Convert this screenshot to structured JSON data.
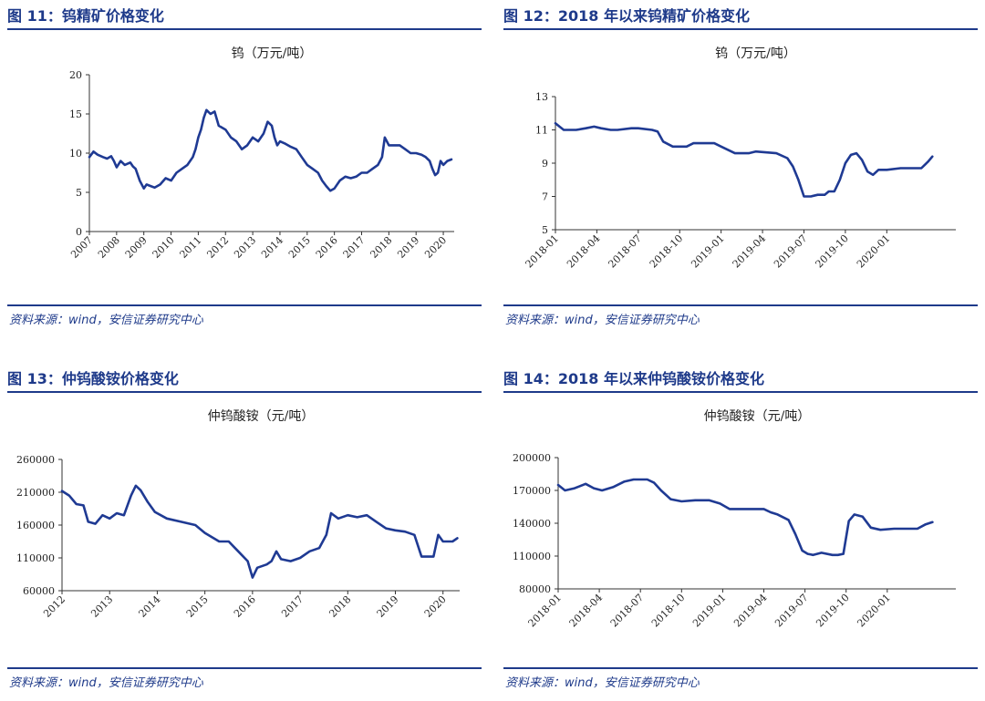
{
  "panels": [
    {
      "fig_title": "图 11：钨精矿价格变化",
      "source": "资料来源：wind，安信证券研究中心",
      "chart_data": {
        "type": "line",
        "title": "钨（万元/吨）",
        "ylim": [
          0,
          20
        ],
        "yticks": [
          "0",
          "5",
          "10",
          "15",
          "20"
        ],
        "xlim": [
          2007,
          2020.4
        ],
        "xtick_values": [
          2007,
          2008,
          2009,
          2010,
          2011,
          2012,
          2013,
          2014,
          2015,
          2016,
          2017,
          2018,
          2019,
          2020
        ],
        "xticks": [
          "2007",
          "2008",
          "2009",
          "2010",
          "2011",
          "2012",
          "2013",
          "2014",
          "2015",
          "2016",
          "2017",
          "2018",
          "2019",
          "2020"
        ],
        "line_color": "#1f3a93",
        "x": [
          2007.0,
          2007.15,
          2007.3,
          2007.5,
          2007.65,
          2007.8,
          2007.9,
          2008.0,
          2008.15,
          2008.3,
          2008.5,
          2008.6,
          2008.7,
          2008.85,
          2009.0,
          2009.1,
          2009.25,
          2009.4,
          2009.6,
          2009.8,
          2010.0,
          2010.2,
          2010.4,
          2010.6,
          2010.8,
          2010.9,
          2011.0,
          2011.1,
          2011.2,
          2011.3,
          2011.45,
          2011.6,
          2011.75,
          2011.9,
          2012.0,
          2012.2,
          2012.4,
          2012.6,
          2012.8,
          2013.0,
          2013.2,
          2013.4,
          2013.55,
          2013.7,
          2013.8,
          2013.9,
          2014.0,
          2014.2,
          2014.4,
          2014.6,
          2014.8,
          2015.0,
          2015.2,
          2015.4,
          2015.55,
          2015.7,
          2015.85,
          2016.0,
          2016.2,
          2016.4,
          2016.6,
          2016.8,
          2017.0,
          2017.2,
          2017.4,
          2017.6,
          2017.75,
          2017.85,
          2018.0,
          2018.2,
          2018.4,
          2018.6,
          2018.8,
          2019.0,
          2019.2,
          2019.35,
          2019.5,
          2019.6,
          2019.7,
          2019.8,
          2019.9,
          2020.0,
          2020.15,
          2020.3
        ],
        "values": [
          9.5,
          10.2,
          9.8,
          9.5,
          9.3,
          9.6,
          9.0,
          8.2,
          9.0,
          8.5,
          8.8,
          8.3,
          8.0,
          6.5,
          5.5,
          6.0,
          5.8,
          5.6,
          6.0,
          6.8,
          6.5,
          7.5,
          8.0,
          8.5,
          9.5,
          10.5,
          12.0,
          13.0,
          14.5,
          15.5,
          15.0,
          15.3,
          13.5,
          13.2,
          13.0,
          12.0,
          11.5,
          10.5,
          11.0,
          12.0,
          11.5,
          12.5,
          14.0,
          13.5,
          12.0,
          11.0,
          11.5,
          11.2,
          10.8,
          10.5,
          9.5,
          8.5,
          8.0,
          7.5,
          6.5,
          5.8,
          5.2,
          5.5,
          6.5,
          7.0,
          6.8,
          7.0,
          7.5,
          7.5,
          8.0,
          8.5,
          9.5,
          12.0,
          11.0,
          11.0,
          11.0,
          10.5,
          10.0,
          10.0,
          9.8,
          9.5,
          9.0,
          8.0,
          7.2,
          7.5,
          9.0,
          8.5,
          9.0,
          9.2
        ]
      }
    },
    {
      "fig_title": "图 12：2018 年以来钨精矿价格变化",
      "source": "资料来源：wind，安信证券研究中心",
      "chart_data": {
        "type": "line",
        "title": "钨（万元/吨）",
        "ylim": [
          5,
          13
        ],
        "yticks": [
          "5",
          "7",
          "9",
          "11",
          "13"
        ],
        "xlim": [
          0,
          29
        ],
        "xtick_values": [
          0,
          3,
          6,
          9,
          12,
          15,
          18,
          21,
          24
        ],
        "xticks": [
          "2018-01",
          "2018-04",
          "2018-07",
          "2018-10",
          "2019-01",
          "2019-04",
          "2019-07",
          "2019-10",
          "2020-01"
        ],
        "line_color": "#1f3a93",
        "x": [
          0,
          0.3,
          0.6,
          1.5,
          2.2,
          2.8,
          3.3,
          4.0,
          4.5,
          5.5,
          6.0,
          7.0,
          7.4,
          7.8,
          8.5,
          9.5,
          10.0,
          11.5,
          12.0,
          13.0,
          14.0,
          14.5,
          16.0,
          16.8,
          17.2,
          17.6,
          18.0,
          18.5,
          19.0,
          19.5,
          19.8,
          20.2,
          20.6,
          21.0,
          21.4,
          21.8,
          22.2,
          22.6,
          23.0,
          23.4,
          24.0,
          25.0,
          26.0,
          26.5,
          27.0,
          27.3
        ],
        "values": [
          11.4,
          11.2,
          11.0,
          11.0,
          11.1,
          11.2,
          11.1,
          11.0,
          11.0,
          11.1,
          11.1,
          11.0,
          10.9,
          10.3,
          10.0,
          10.0,
          10.2,
          10.2,
          10.0,
          9.6,
          9.6,
          9.7,
          9.6,
          9.3,
          8.8,
          8.0,
          7.0,
          7.0,
          7.1,
          7.1,
          7.3,
          7.3,
          8.0,
          9.0,
          9.5,
          9.6,
          9.2,
          8.5,
          8.3,
          8.6,
          8.6,
          8.7,
          8.7,
          8.7,
          9.1,
          9.4
        ]
      }
    },
    {
      "fig_title": "图 13：仲钨酸铵价格变化",
      "source": "资料来源：wind，安信证券研究中心",
      "chart_data": {
        "type": "line",
        "title": "仲钨酸铵（元/吨）",
        "ylim": [
          60000,
          260000
        ],
        "yticks": [
          "60000",
          "110000",
          "160000",
          "210000",
          "260000"
        ],
        "xlim": [
          2012,
          2020.35
        ],
        "xtick_values": [
          2012,
          2013,
          2014,
          2015,
          2016,
          2017,
          2018,
          2019,
          2020
        ],
        "xticks": [
          "2012",
          "2013",
          "2014",
          "2015",
          "2016",
          "2017",
          "2018",
          "2019",
          "2020"
        ],
        "line_color": "#1f3a93",
        "x": [
          2012.0,
          2012.15,
          2012.3,
          2012.45,
          2012.55,
          2012.7,
          2012.85,
          2013.0,
          2013.15,
          2013.3,
          2013.45,
          2013.55,
          2013.65,
          2013.8,
          2013.95,
          2014.2,
          2014.5,
          2014.8,
          2015.0,
          2015.3,
          2015.5,
          2015.7,
          2015.9,
          2016.0,
          2016.1,
          2016.3,
          2016.4,
          2016.5,
          2016.6,
          2016.8,
          2017.0,
          2017.2,
          2017.4,
          2017.55,
          2017.65,
          2017.8,
          2018.0,
          2018.2,
          2018.4,
          2018.6,
          2018.8,
          2019.0,
          2019.2,
          2019.4,
          2019.55,
          2019.65,
          2019.8,
          2019.9,
          2020.0,
          2020.2,
          2020.3
        ],
        "values": [
          212000,
          205000,
          192000,
          190000,
          165000,
          162000,
          175000,
          170000,
          178000,
          175000,
          205000,
          220000,
          213000,
          195000,
          180000,
          170000,
          165000,
          160000,
          148000,
          135000,
          135000,
          120000,
          105000,
          80000,
          95000,
          100000,
          105000,
          120000,
          108000,
          105000,
          110000,
          120000,
          125000,
          145000,
          178000,
          170000,
          175000,
          172000,
          175000,
          165000,
          155000,
          152000,
          150000,
          145000,
          112000,
          112000,
          112000,
          145000,
          135000,
          135000,
          140000
        ]
      }
    },
    {
      "fig_title": "图 14：2018 年以来仲钨酸铵价格变化",
      "source": "资料来源：wind，安信证券研究中心",
      "chart_data": {
        "type": "line",
        "title": "仲钨酸铵（元/吨）",
        "ylim": [
          80000,
          200000
        ],
        "yticks": [
          "80000",
          "110000",
          "140000",
          "170000",
          "200000"
        ],
        "xlim": [
          0,
          29
        ],
        "xtick_values": [
          0,
          3,
          6,
          9,
          12,
          15,
          18,
          21,
          24
        ],
        "xticks": [
          "2018-01",
          "2018-04",
          "2018-07",
          "2018-10",
          "2019-01",
          "2019-04",
          "2019-07",
          "2019-10",
          "2020-01"
        ],
        "line_color": "#1f3a93",
        "x": [
          0,
          0.5,
          1.2,
          2.0,
          2.6,
          3.2,
          4.0,
          4.8,
          5.5,
          6.5,
          7.0,
          7.5,
          8.2,
          9.0,
          10.0,
          11.0,
          11.8,
          12.5,
          14.0,
          15.0,
          15.5,
          16.0,
          16.8,
          17.3,
          17.8,
          18.2,
          18.6,
          19.2,
          20.0,
          20.4,
          20.8,
          21.2,
          21.6,
          22.2,
          22.8,
          23.5,
          24.5,
          25.5,
          26.2,
          26.8,
          27.3
        ],
        "values": [
          175000,
          170000,
          172000,
          176000,
          172000,
          170000,
          173000,
          178000,
          180000,
          180000,
          177000,
          170000,
          162000,
          160000,
          161000,
          161000,
          158000,
          153000,
          153000,
          153000,
          150000,
          148000,
          143000,
          130000,
          115000,
          112000,
          111000,
          113000,
          111000,
          111000,
          112000,
          142000,
          148000,
          146000,
          136000,
          134000,
          135000,
          135000,
          135000,
          139000,
          141000
        ]
      }
    }
  ]
}
